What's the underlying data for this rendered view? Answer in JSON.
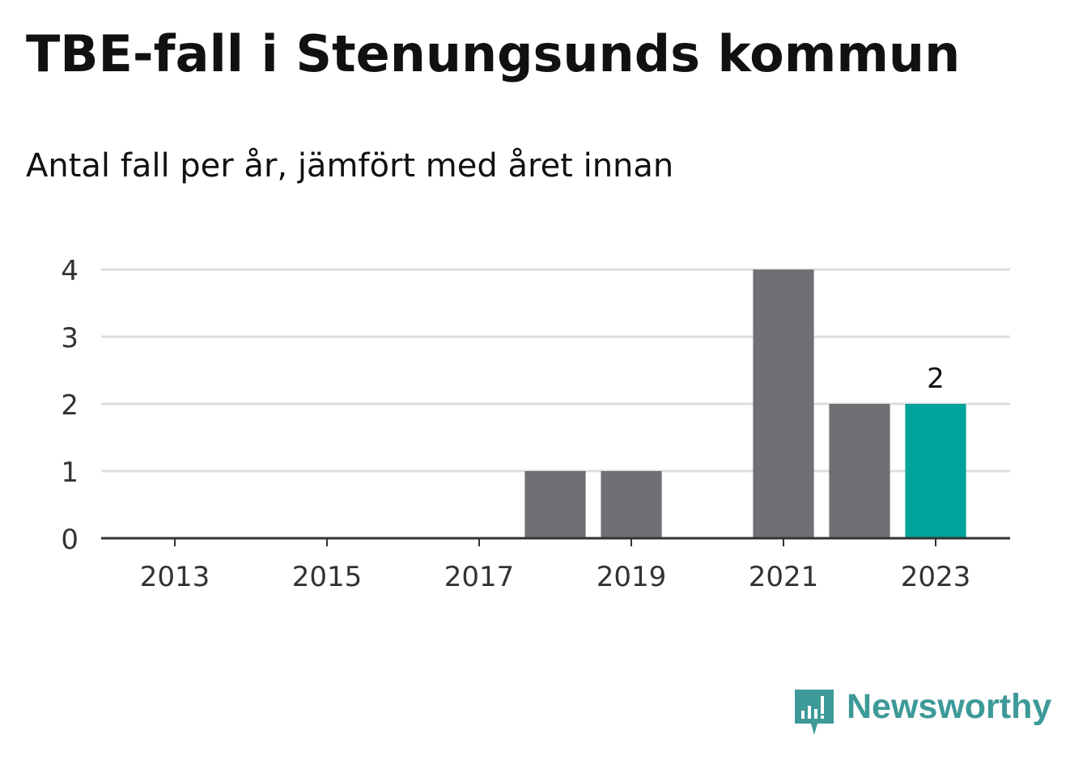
{
  "title": "TBE-fall i Stenungsunds kommun",
  "subtitle": "Antal fall per år, jämfört med året innan",
  "brand": {
    "name": "Newsworthy",
    "icon": "newsworthy-logo-icon",
    "color": "#3d9a98"
  },
  "colors": {
    "bar": "#706f74",
    "highlight": "#00a49a",
    "grid": "#dddddd",
    "axis": "#333333"
  },
  "chart_data": {
    "type": "bar",
    "categories": [
      "2013",
      "2014",
      "2015",
      "2016",
      "2017",
      "2018",
      "2019",
      "2020",
      "2021",
      "2022",
      "2023"
    ],
    "values": [
      0,
      0,
      0,
      0,
      0,
      1,
      1,
      0,
      4,
      2,
      2
    ],
    "x_tick_labels": [
      "2013",
      "2015",
      "2017",
      "2019",
      "2021",
      "2023"
    ],
    "y_ticks": [
      0,
      1,
      2,
      3,
      4
    ],
    "ylim": [
      0,
      4
    ],
    "highlight_category": "2023",
    "data_labels": [
      {
        "category": "2023",
        "text": "2"
      }
    ],
    "grid": true,
    "legend": "none"
  }
}
